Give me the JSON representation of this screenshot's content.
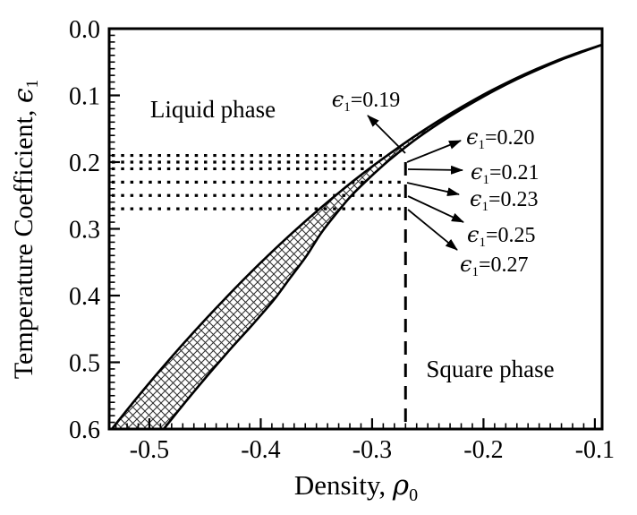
{
  "chart_data": {
    "type": "line",
    "title": "",
    "xlabel": {
      "prefix": "Density, ",
      "symbol": "ρ",
      "subscript": "0"
    },
    "ylabel": {
      "prefix": "Temperature Coefficient, ",
      "symbol": "ϵ",
      "subscript": "1"
    },
    "x_range": [
      -0.5361,
      -0.0935
    ],
    "y_range": [
      0,
      0.6
    ],
    "y_axis_direction": "inverted (0.0 at top, 0.6 at bottom)",
    "x_ticks": [
      -0.5,
      -0.4,
      -0.3,
      -0.2,
      -0.1
    ],
    "x_tick_labels": [
      "-0.5",
      "-0.4",
      "-0.3",
      "-0.2",
      "-0.1"
    ],
    "y_ticks": [
      0.0,
      0.1,
      0.2,
      0.3,
      0.4,
      0.5,
      0.6
    ],
    "y_tick_labels": [
      "0.0",
      "0.1",
      "0.2",
      "0.3",
      "0.4",
      "0.5",
      "0.6"
    ],
    "minor_tick_step": {
      "x": 0.01,
      "y": 0.01
    },
    "grid": false,
    "legend": false,
    "coexistence_band": "cross-hatched region between the two phase-boundary curves",
    "series": [
      {
        "name": "phase-boundary-left",
        "points": [
          [
            -0.5337,
            0.6
          ],
          [
            -0.5137,
            0.5584
          ],
          [
            -0.4936,
            0.5183
          ],
          [
            -0.4735,
            0.4796
          ],
          [
            -0.4534,
            0.4424
          ],
          [
            -0.4333,
            0.4068
          ],
          [
            -0.4133,
            0.3725
          ],
          [
            -0.3932,
            0.3397
          ],
          [
            -0.3731,
            0.3083
          ],
          [
            -0.353,
            0.2785
          ],
          [
            -0.3329,
            0.2501
          ],
          [
            -0.3129,
            0.2231
          ],
          [
            -0.2928,
            0.1977
          ],
          [
            -0.2727,
            0.1737
          ],
          [
            -0.2526,
            0.1511
          ],
          [
            -0.2325,
            0.1301
          ],
          [
            -0.2124,
            0.1105
          ],
          [
            -0.1924,
            0.0922
          ],
          [
            -0.1723,
            0.0756
          ],
          [
            -0.1522,
            0.0604
          ],
          [
            -0.1321,
            0.0466
          ],
          [
            -0.112,
            0.0342
          ],
          [
            -0.0936,
            0.0242
          ]
        ]
      },
      {
        "name": "phase-boundary-right",
        "points": [
          [
            -0.4871,
            0.6
          ],
          [
            -0.4671,
            0.5584
          ],
          [
            -0.447,
            0.5183
          ],
          [
            -0.4269,
            0.4796
          ],
          [
            -0.4068,
            0.4424
          ],
          [
            -0.3884,
            0.4068
          ],
          [
            -0.3731,
            0.3725
          ],
          [
            -0.3586,
            0.3397
          ],
          [
            -0.3466,
            0.3083
          ],
          [
            -0.3329,
            0.2785
          ],
          [
            -0.3185,
            0.2501
          ],
          [
            -0.302,
            0.2231
          ],
          [
            -0.2851,
            0.1977
          ],
          [
            -0.2671,
            0.1737
          ],
          [
            -0.2482,
            0.1511
          ],
          [
            -0.2289,
            0.1301
          ],
          [
            -0.2092,
            0.1105
          ],
          [
            -0.1896,
            0.0922
          ],
          [
            -0.1699,
            0.0756
          ],
          [
            -0.1498,
            0.0604
          ],
          [
            -0.1301,
            0.0466
          ],
          [
            -0.1104,
            0.0342
          ],
          [
            -0.0936,
            0.0242
          ]
        ]
      }
    ],
    "dotted_hlines_eps1": [
      0.19,
      0.2,
      0.21,
      0.23,
      0.25,
      0.27
    ],
    "dashed_vline_rho0": -0.27,
    "regions": [
      {
        "label": "Liquid phase"
      },
      {
        "label": "Square phase"
      }
    ],
    "annotations": [
      {
        "sym": "ϵ",
        "sub": "1",
        "val": "=0.19",
        "eps1": 0.19
      },
      {
        "sym": "ϵ",
        "sub": "1",
        "val": "=0.20",
        "eps1": 0.2
      },
      {
        "sym": "ϵ",
        "sub": "1",
        "val": "=0.21",
        "eps1": 0.21
      },
      {
        "sym": "ϵ",
        "sub": "1",
        "val": "=0.23",
        "eps1": 0.23
      },
      {
        "sym": "ϵ",
        "sub": "1",
        "val": "=0.25",
        "eps1": 0.25
      },
      {
        "sym": "ϵ",
        "sub": "1",
        "val": "=0.27",
        "eps1": 0.27
      }
    ]
  }
}
